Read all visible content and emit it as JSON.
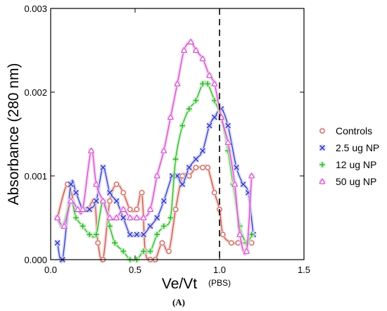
{
  "chart_data": {
    "type": "line",
    "title": "",
    "xlabel": "Ve/Vt",
    "ylabel": "Absorbance (280 nm)",
    "xlim": [
      0,
      1.5
    ],
    "ylim": [
      0,
      0.003
    ],
    "x_ticks": [
      0,
      0.5,
      1,
      1.5
    ],
    "x_tick_labels": [
      "0.0",
      "0.5",
      "1.0",
      "1.5"
    ],
    "y_ticks": [
      0,
      0.001,
      0.002,
      0.003
    ],
    "y_tick_labels": [
      "0.000",
      "0.001",
      "0.002",
      "0.003"
    ],
    "grid": false,
    "legend_position": "right",
    "annotations": {
      "vline_x": 1.0,
      "vline_label": "(PBS)",
      "caption": "(A)"
    },
    "series": [
      {
        "name": "Controls",
        "marker": "circle",
        "color": "#c0504d",
        "glow": "#f2c7bf",
        "points": [
          [
            0.04,
            0.0005
          ],
          [
            0.1,
            0.0009
          ],
          [
            0.15,
            0.0006
          ],
          [
            0.19,
            0.0006
          ],
          [
            0.22,
            0.0006
          ],
          [
            0.26,
            0.0007
          ],
          [
            0.28,
            0.0002
          ],
          [
            0.31,
            0.0
          ],
          [
            0.35,
            0.0007
          ],
          [
            0.39,
            0.0009
          ],
          [
            0.43,
            0.0008
          ],
          [
            0.47,
            0.0006
          ],
          [
            0.51,
            0.0006
          ],
          [
            0.54,
            0.0008
          ],
          [
            0.56,
            0.0001
          ],
          [
            0.59,
            0.0
          ],
          [
            0.62,
            0.0
          ],
          [
            0.66,
            0.0002
          ],
          [
            0.7,
            0.0001
          ],
          [
            0.74,
            0.0006
          ],
          [
            0.78,
            0.001
          ],
          [
            0.82,
            0.001
          ],
          [
            0.86,
            0.0011
          ],
          [
            0.9,
            0.0011
          ],
          [
            0.93,
            0.0011
          ],
          [
            0.97,
            0.0008
          ],
          [
            1.0,
            0.0006
          ],
          [
            1.02,
            0.0003
          ],
          [
            1.07,
            0.0002
          ],
          [
            1.11,
            0.0002
          ],
          [
            1.16,
            0.0002
          ],
          [
            1.19,
            0.0002
          ]
        ]
      },
      {
        "name": "2.5 ug NP",
        "marker": "x",
        "color": "#2e2ebf",
        "glow": "#c8cdf2",
        "points": [
          [
            0.04,
            0.0002
          ],
          [
            0.07,
            0.0
          ],
          [
            0.12,
            0.0009
          ],
          [
            0.15,
            0.0008
          ],
          [
            0.19,
            0.0006
          ],
          [
            0.23,
            0.0006
          ],
          [
            0.27,
            0.0007
          ],
          [
            0.31,
            0.0011
          ],
          [
            0.35,
            0.0008
          ],
          [
            0.39,
            0.0007
          ],
          [
            0.43,
            0.0005
          ],
          [
            0.47,
            0.0003
          ],
          [
            0.51,
            0.0003
          ],
          [
            0.55,
            0.0003
          ],
          [
            0.59,
            0.0004
          ],
          [
            0.63,
            0.0005
          ],
          [
            0.67,
            0.0007
          ],
          [
            0.72,
            0.001
          ],
          [
            0.75,
            0.001
          ],
          [
            0.78,
            0.0009
          ],
          [
            0.82,
            0.0011
          ],
          [
            0.86,
            0.0012
          ],
          [
            0.9,
            0.0013
          ],
          [
            0.94,
            0.0016
          ],
          [
            0.97,
            0.0017
          ],
          [
            1.01,
            0.0018
          ],
          [
            1.05,
            0.0016
          ],
          [
            1.1,
            0.0011
          ],
          [
            1.14,
            0.0009
          ],
          [
            1.17,
            0.0008
          ],
          [
            1.2,
            0.0003
          ]
        ]
      },
      {
        "name": "12 ug NP",
        "marker": "plus",
        "color": "#22b022",
        "glow": "#c7efc2",
        "points": [
          [
            0.04,
            0.0005
          ],
          [
            0.07,
            0.0004
          ],
          [
            0.12,
            0.0007
          ],
          [
            0.15,
            0.0005
          ],
          [
            0.19,
            0.0004
          ],
          [
            0.23,
            0.0003
          ],
          [
            0.27,
            0.0003
          ],
          [
            0.31,
            0.0007
          ],
          [
            0.35,
            0.0004
          ],
          [
            0.38,
            0.0002
          ],
          [
            0.43,
            0.0001
          ],
          [
            0.47,
            0.0
          ],
          [
            0.51,
            0.0
          ],
          [
            0.55,
            0.0001
          ],
          [
            0.59,
            0.0001
          ],
          [
            0.63,
            0.0003
          ],
          [
            0.67,
            0.0004
          ],
          [
            0.71,
            0.0005
          ],
          [
            0.74,
            0.0012
          ],
          [
            0.78,
            0.0016
          ],
          [
            0.82,
            0.0018
          ],
          [
            0.86,
            0.0019
          ],
          [
            0.9,
            0.0021
          ],
          [
            0.93,
            0.0021
          ],
          [
            0.97,
            0.0019
          ],
          [
            1.01,
            0.0017
          ],
          [
            1.05,
            0.0013
          ],
          [
            1.08,
            0.0009
          ],
          [
            1.12,
            0.0004
          ],
          [
            1.16,
            0.0002
          ],
          [
            1.19,
            0.0003
          ]
        ]
      },
      {
        "name": "50 ug NP",
        "marker": "triangle",
        "color": "#cc44cc",
        "glow": "#f3c6ee",
        "points": [
          [
            0.04,
            0.0005
          ],
          [
            0.08,
            0.0004
          ],
          [
            0.12,
            0.0007
          ],
          [
            0.16,
            0.0006
          ],
          [
            0.19,
            0.0006
          ],
          [
            0.24,
            0.0013
          ],
          [
            0.27,
            0.0009
          ],
          [
            0.31,
            0.0007
          ],
          [
            0.35,
            0.0005
          ],
          [
            0.39,
            0.0005
          ],
          [
            0.43,
            0.0006
          ],
          [
            0.47,
            0.0005
          ],
          [
            0.51,
            0.0005
          ],
          [
            0.55,
            0.0005
          ],
          [
            0.59,
            0.0006
          ],
          [
            0.63,
            0.001
          ],
          [
            0.67,
            0.0013
          ],
          [
            0.71,
            0.0017
          ],
          [
            0.75,
            0.0021
          ],
          [
            0.79,
            0.0025
          ],
          [
            0.83,
            0.0026
          ],
          [
            0.86,
            0.0025
          ],
          [
            0.9,
            0.0024
          ],
          [
            0.94,
            0.0022
          ],
          [
            0.97,
            0.0021
          ],
          [
            1.01,
            0.0017
          ],
          [
            1.05,
            0.0014
          ],
          [
            1.09,
            0.0009
          ],
          [
            1.12,
            0.0003
          ],
          [
            1.16,
            0.0001
          ],
          [
            1.19,
            0.001
          ]
        ]
      }
    ]
  }
}
